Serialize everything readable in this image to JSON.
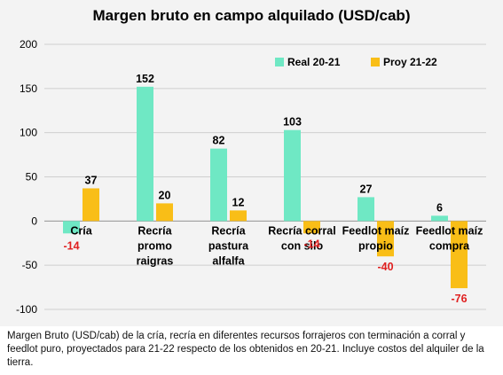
{
  "chart_data": {
    "type": "bar",
    "title": "Margen bruto en campo alquilado (USD/cab)",
    "categories": [
      [
        "Cría"
      ],
      [
        "Recría",
        "promo",
        "raigras"
      ],
      [
        "Recría",
        "pastura",
        "alfalfa"
      ],
      [
        "Recría  corral",
        "con silo"
      ],
      [
        "Feedlot  maíz",
        "propio"
      ],
      [
        "Feedlot maíz",
        "compra"
      ]
    ],
    "series": [
      {
        "name": "Real 20-21",
        "color": "#6fe8c4",
        "values": [
          -14,
          152,
          82,
          103,
          27,
          6
        ]
      },
      {
        "name": "Proy 21-22",
        "color": "#f9be17",
        "values": [
          37,
          20,
          12,
          -14,
          -40,
          -76
        ]
      }
    ],
    "ylim": [
      -100,
      200
    ],
    "yticks": [
      200,
      150,
      100,
      50,
      0,
      -50,
      -100
    ],
    "negative_label_color": "#e02020",
    "grid": true,
    "legend_position": "top-right"
  },
  "caption": "Margen Bruto (USD/cab) de la cría, recría en diferentes recursos forrajeros con terminación a corral y feedlot puro, proyectados para 21-22 respecto de los obtenidos en 20-21. Incluye costos del alquiler de la tierra."
}
